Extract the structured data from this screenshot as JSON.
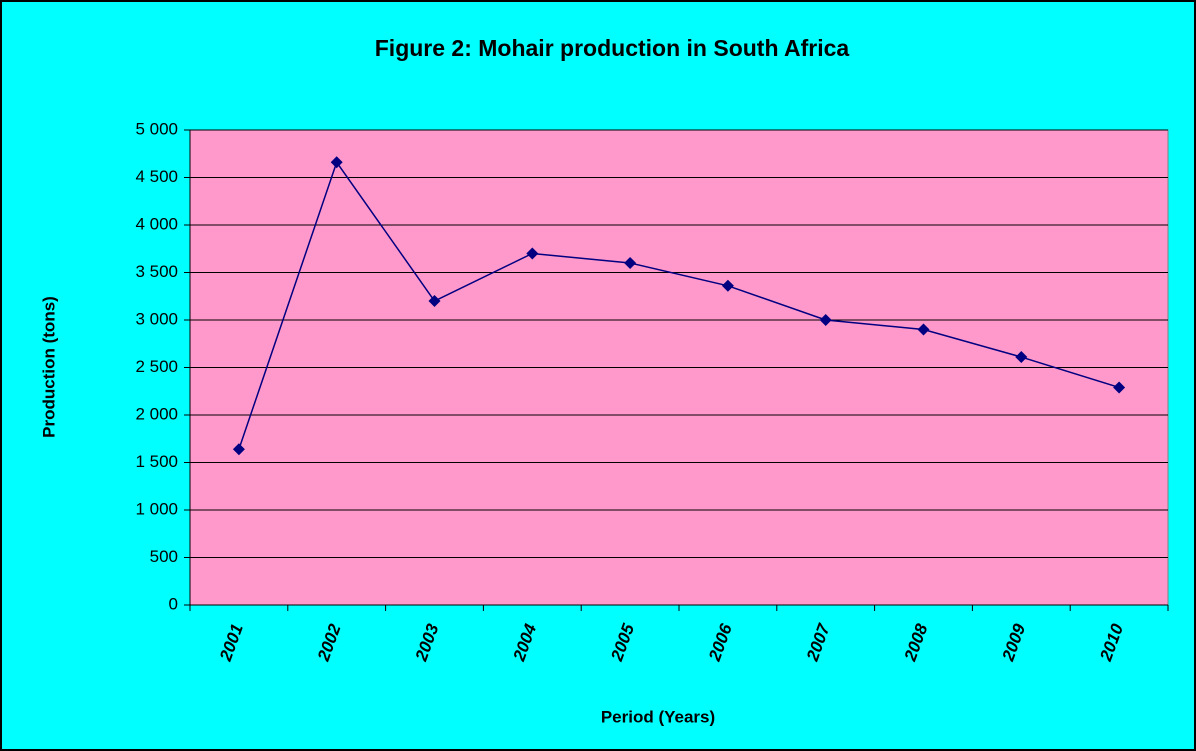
{
  "chart_data": {
    "type": "line",
    "title": "Figure 2: Mohair production in South Africa",
    "x_label": "Period (Years)",
    "y_label": "Production (tons)",
    "categories": [
      "2001",
      "2002",
      "2003",
      "2004",
      "2005",
      "2006",
      "2007",
      "2008",
      "2009",
      "2010"
    ],
    "series": [
      {
        "name": "Production",
        "color": "#000080",
        "values": [
          1640,
          4660,
          3200,
          3700,
          3600,
          3360,
          3000,
          2900,
          2610,
          2290
        ]
      }
    ],
    "ylim": [
      0,
      5000
    ],
    "yticks": [
      0,
      500,
      {
        "value": 1000,
        "label": "1 000"
      },
      {
        "value": 1500,
        "label": "1 500"
      },
      {
        "value": 2000,
        "label": "2 000"
      },
      {
        "value": 2500,
        "label": "2 500"
      },
      {
        "value": 3000,
        "label": "3 000"
      },
      {
        "value": 3500,
        "label": "3 500"
      },
      {
        "value": 4000,
        "label": "4 000"
      },
      {
        "value": 4500,
        "label": "4 500"
      },
      {
        "value": 5000,
        "label": "5 000"
      }
    ],
    "grid": true,
    "background": "#00ffff",
    "plot_background": "#ff99cc"
  }
}
